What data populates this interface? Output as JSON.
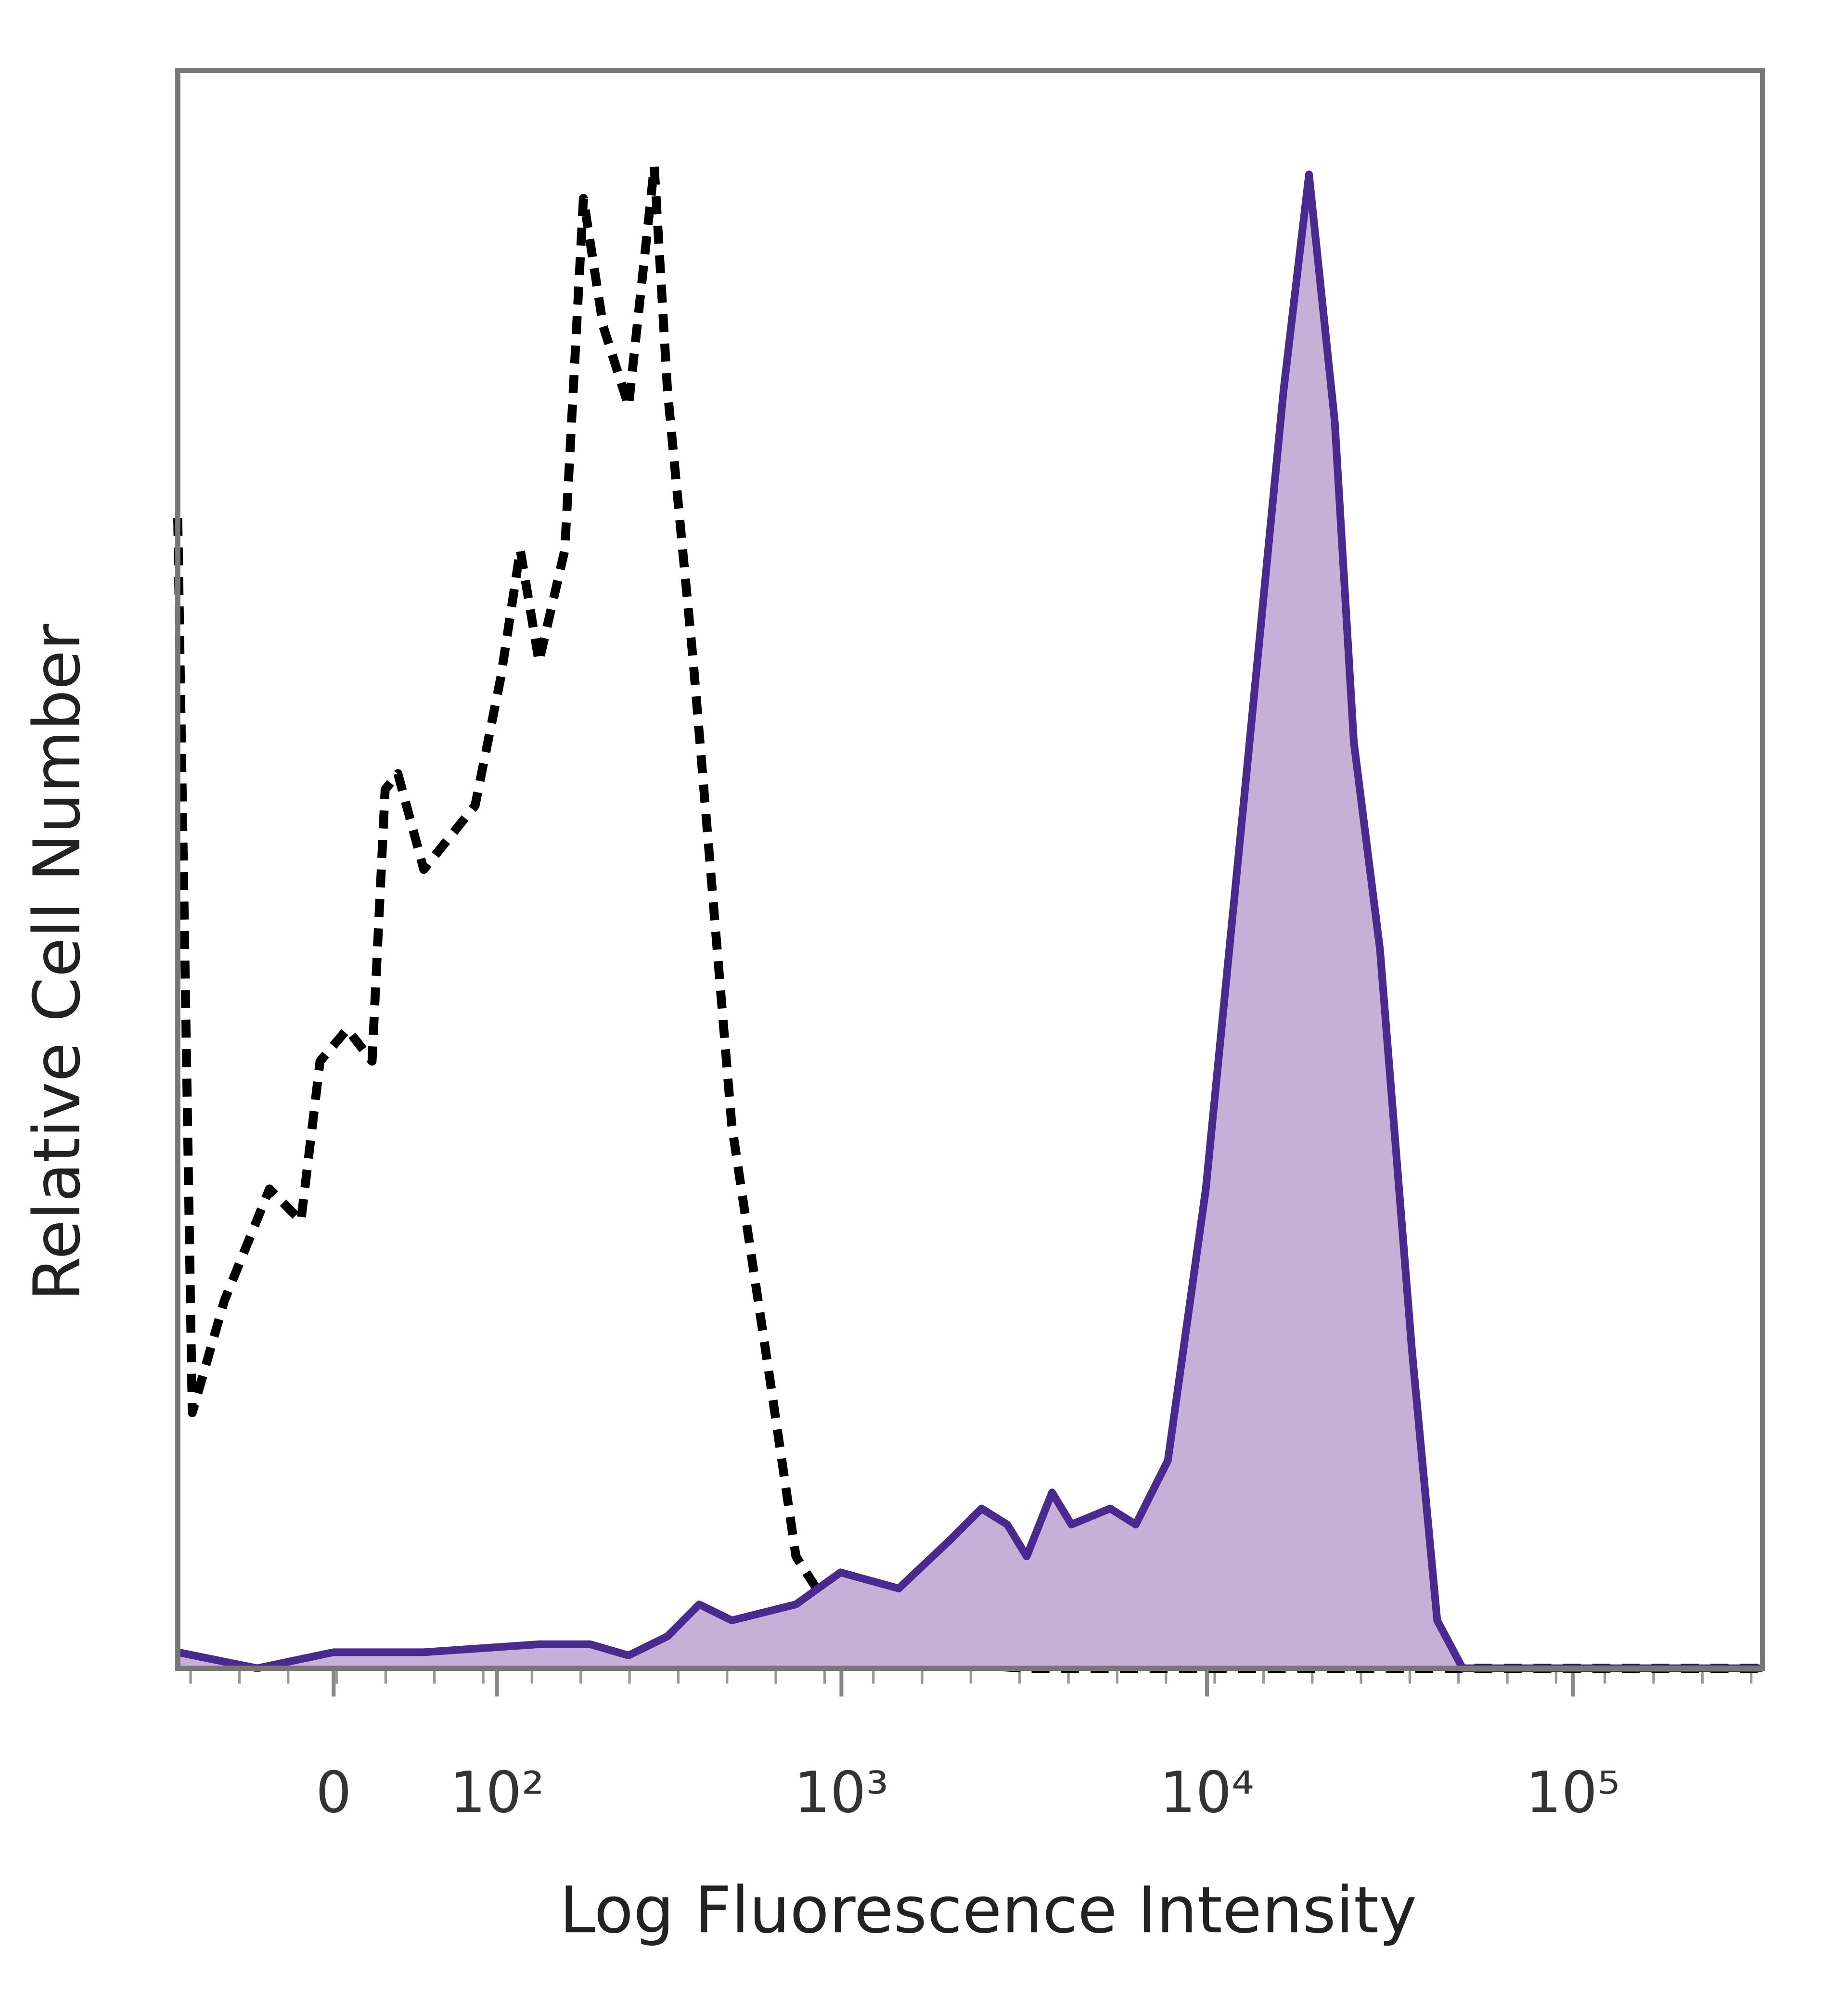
{
  "chart_data": {
    "type": "line",
    "x_label": "Log Fluorescence Intensity",
    "y_label": "Relative Cell Number",
    "xscale": "biexponential",
    "xlim": [
      -94,
      330000
    ],
    "ylim": [
      0,
      100
    ],
    "xticks": [
      0,
      {
        "value": 100,
        "label": "10²"
      },
      {
        "value": 1000,
        "label": "10³"
      },
      {
        "value": 10000,
        "label": "10⁴"
      },
      {
        "value": 100000,
        "label": "10⁵"
      }
    ],
    "series": [
      {
        "color": "#000000",
        "style": "dashed",
        "x": [
          -94,
          -83,
          -61,
          -34,
          -17,
          -7,
          7,
          20,
          27,
          34,
          49,
          83,
          103,
          120,
          138,
          166,
          189,
          216,
          256,
          303,
          330,
          390,
          499,
          637,
          750,
          1037,
          1435,
          3215,
          16200,
          330000
        ],
        "values": [
          72,
          16,
          23,
          30,
          28,
          38,
          40,
          38,
          55,
          56,
          50,
          54,
          62,
          70,
          63,
          70,
          92,
          84,
          79,
          94,
          80,
          63,
          34,
          18,
          7,
          2,
          0.5,
          0,
          0,
          0
        ]
      },
      {
        "color": "#4b2a8f",
        "fill": "#c6b0d8",
        "style": "solid",
        "x": [
          -94,
          -41,
          0,
          49,
          138,
          198,
          256,
          330,
          405,
          499,
          750,
          994,
          1435,
          1977,
          2419,
          2845,
          3215,
          3772,
          4260,
          5437,
          6388,
          7815,
          9930,
          12700,
          16200,
          19000,
          22360,
          25200,
          29700,
          36300,
          42600,
          50000,
          330000
        ],
        "values": [
          1,
          0,
          1,
          1,
          1.5,
          1.5,
          0.8,
          2,
          4,
          3,
          4,
          6,
          5,
          8,
          10,
          9,
          7,
          11,
          9,
          10,
          9,
          13,
          30,
          55,
          80,
          93.5,
          78,
          58,
          45,
          20,
          3,
          0,
          0
        ]
      }
    ]
  }
}
